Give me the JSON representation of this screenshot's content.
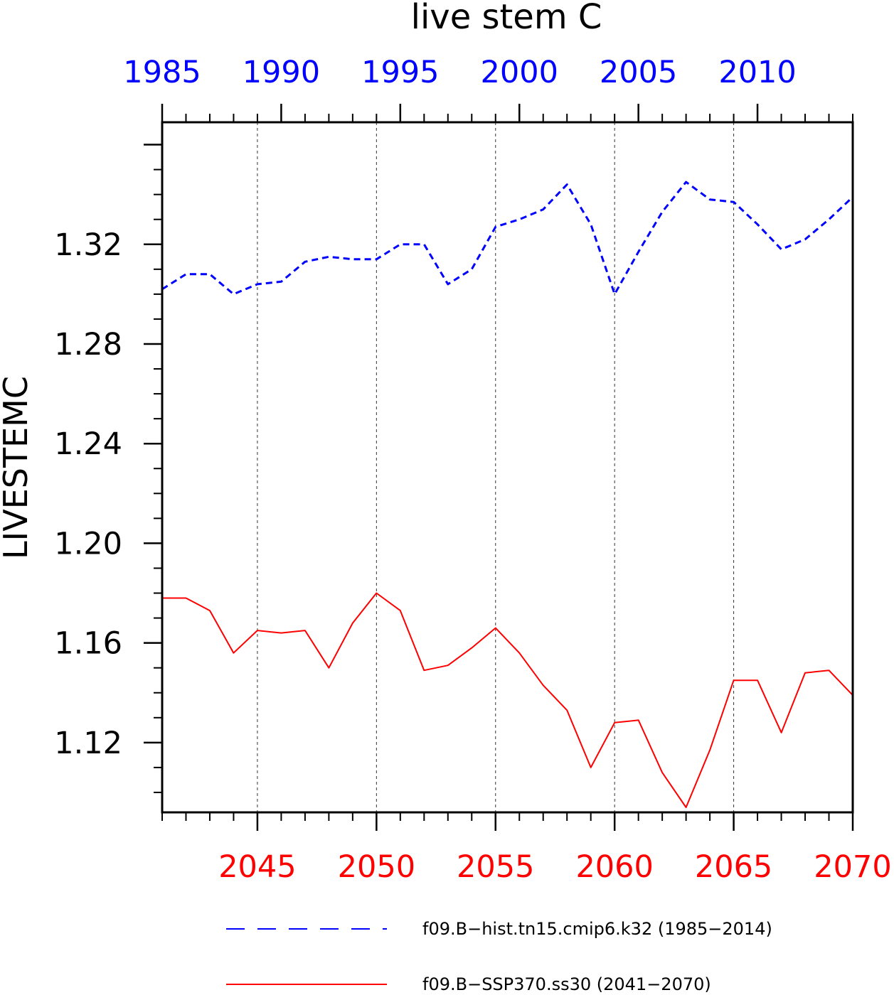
{
  "chart_data": {
    "type": "line",
    "title": "live stem C",
    "ylabel": "LIVESTEMC",
    "ylim": [
      1.092,
      1.369
    ],
    "y_ticks": [
      "1.12",
      "1.16",
      "1.20",
      "1.24",
      "1.28",
      "1.32"
    ],
    "x_top": {
      "color": "#0000ff",
      "range": [
        1985,
        2014
      ],
      "ticks": [
        "1985",
        "1990",
        "1995",
        "2000",
        "2005",
        "2010"
      ]
    },
    "x_bottom": {
      "color": "#ff0000",
      "range": [
        2041,
        2070
      ],
      "ticks": [
        "2045",
        "2050",
        "2055",
        "2060",
        "2065",
        "2070"
      ]
    },
    "grid": "vertical dashed at major bottom ticks",
    "legend_position": "bottom",
    "series": [
      {
        "name": "f09.B−hist.tn15.cmip6.k32 (1985−2014)",
        "axis": "top",
        "color": "#0000ff",
        "dash": "dashed",
        "x": [
          1985,
          1986,
          1987,
          1988,
          1989,
          1990,
          1991,
          1992,
          1993,
          1994,
          1995,
          1996,
          1997,
          1998,
          1999,
          2000,
          2001,
          2002,
          2003,
          2004,
          2005,
          2006,
          2007,
          2008,
          2009,
          2010,
          2011,
          2012,
          2013,
          2014
        ],
        "values": [
          1.302,
          1.308,
          1.308,
          1.3,
          1.304,
          1.305,
          1.313,
          1.315,
          1.314,
          1.314,
          1.32,
          1.32,
          1.304,
          1.31,
          1.327,
          1.33,
          1.334,
          1.344,
          1.328,
          1.3,
          1.317,
          1.333,
          1.345,
          1.338,
          1.337,
          1.328,
          1.318,
          1.322,
          1.33,
          1.339
        ]
      },
      {
        "name": "f09.B−SSP370.ss30 (2041−2070)",
        "axis": "bottom",
        "color": "#ff0000",
        "dash": "solid",
        "x": [
          2041,
          2042,
          2043,
          2044,
          2045,
          2046,
          2047,
          2048,
          2049,
          2050,
          2051,
          2052,
          2053,
          2054,
          2055,
          2056,
          2057,
          2058,
          2059,
          2060,
          2061,
          2062,
          2063,
          2064,
          2065,
          2066,
          2067,
          2068,
          2069,
          2070
        ],
        "values": [
          1.178,
          1.178,
          1.173,
          1.156,
          1.165,
          1.164,
          1.165,
          1.15,
          1.168,
          1.18,
          1.173,
          1.149,
          1.151,
          1.158,
          1.166,
          1.156,
          1.143,
          1.133,
          1.11,
          1.128,
          1.129,
          1.108,
          1.094,
          1.117,
          1.145,
          1.145,
          1.124,
          1.148,
          1.149,
          1.139
        ]
      }
    ]
  }
}
